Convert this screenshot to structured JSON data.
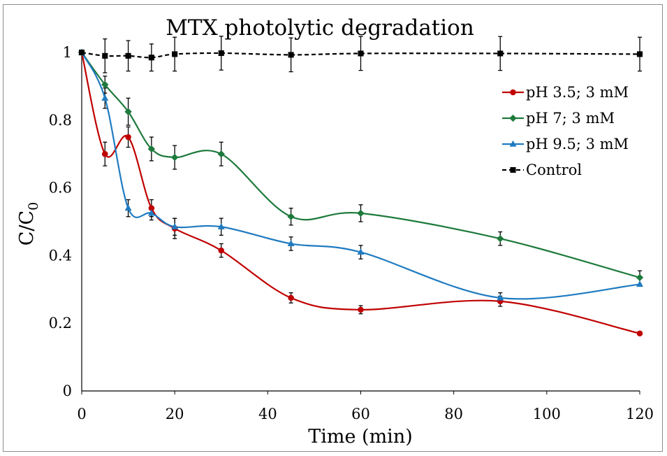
{
  "chart_data": {
    "type": "line",
    "title": "MTX photolytic degradation",
    "xlabel": "Time (min)",
    "ylabel": "C/C0",
    "ylabel_main": "C/C",
    "ylabel_sub": "0",
    "xlim": [
      0,
      120
    ],
    "ylim": [
      0,
      1
    ],
    "xticks": [
      0,
      20,
      40,
      60,
      80,
      100,
      120
    ],
    "yticks": [
      0,
      0.2,
      0.4,
      0.6,
      0.8,
      1
    ],
    "ytick_labels": [
      "0",
      "0.2",
      "0.4",
      "0.6",
      "0.8",
      "1"
    ],
    "x": [
      0,
      5,
      10,
      15,
      20,
      30,
      45,
      60,
      90,
      120
    ],
    "legend_position": "top-right",
    "series": [
      {
        "name": "pH 3.5; 3 mM",
        "color": "#c00000",
        "marker": "circle",
        "dashed": false,
        "values": [
          1.0,
          0.7,
          0.75,
          0.54,
          0.48,
          0.415,
          0.275,
          0.24,
          0.265,
          0.17
        ],
        "errors": [
          0.0,
          0.035,
          0.03,
          0.025,
          0.03,
          0.02,
          0.015,
          0.012,
          0.015,
          0.0
        ]
      },
      {
        "name": "pH 7; 3 mM",
        "color": "#1e7a3c",
        "marker": "diamond",
        "dashed": false,
        "values": [
          1.0,
          0.905,
          0.825,
          0.715,
          0.69,
          0.7,
          0.515,
          0.525,
          0.45,
          0.335
        ],
        "errors": [
          0.0,
          0.025,
          0.04,
          0.035,
          0.035,
          0.035,
          0.025,
          0.025,
          0.02,
          0.02
        ]
      },
      {
        "name": "pH 9.5; 3 mM",
        "color": "#1f7bc1",
        "marker": "triangle",
        "dashed": false,
        "values": [
          1.0,
          0.865,
          0.54,
          0.525,
          0.485,
          0.485,
          0.435,
          0.41,
          0.275,
          0.315
        ],
        "errors": [
          0.0,
          0.03,
          0.025,
          0.02,
          0.025,
          0.025,
          0.02,
          0.02,
          0.015,
          0.0
        ]
      },
      {
        "name": "Control",
        "color": "#000000",
        "marker": "square",
        "dashed": true,
        "values": [
          1.0,
          0.99,
          0.99,
          0.985,
          0.995,
          0.998,
          0.993,
          0.997,
          0.997,
          0.995
        ],
        "errors": [
          0.0,
          0.05,
          0.045,
          0.04,
          0.05,
          0.05,
          0.05,
          0.05,
          0.05,
          0.05
        ]
      }
    ]
  }
}
